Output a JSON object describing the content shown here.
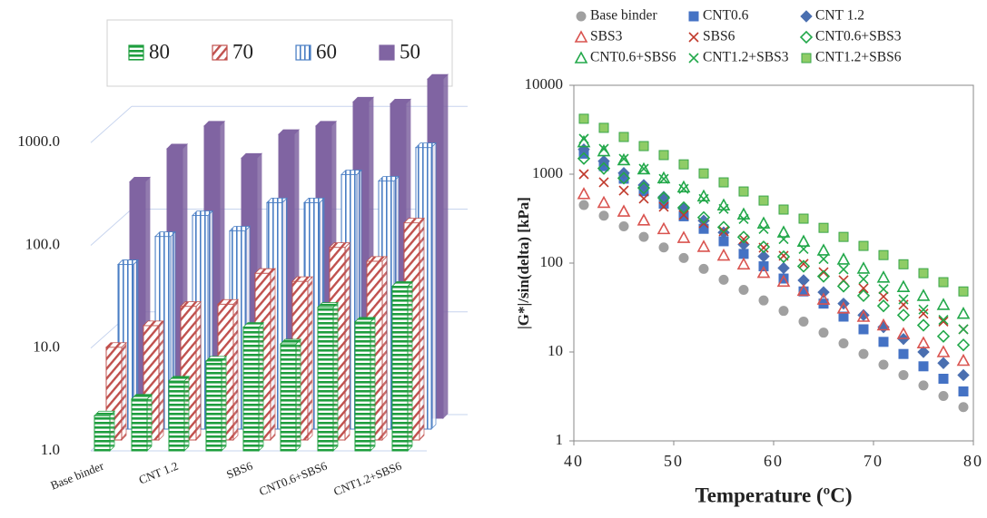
{
  "chart_data": [
    {
      "type": "bar3d",
      "categories": [
        "Base binder",
        null,
        "CNT 1.2",
        null,
        "SBS6",
        null,
        "CNT0.6+SBS6",
        null,
        "CNT1.2+SBS6"
      ],
      "series": [
        {
          "name": "80",
          "color": "#1e9e3e",
          "pattern": "horizontal",
          "values": [
            2.2,
            3.2,
            4.8,
            7.5,
            16,
            11,
            25,
            18,
            40
          ]
        },
        {
          "name": "70",
          "color": "#c0504d",
          "pattern": "diagonal",
          "values": [
            8,
            13,
            20,
            21,
            42,
            35,
            75,
            55,
            130
          ]
        },
        {
          "name": "60",
          "color": "#4a7ec4",
          "pattern": "vertical",
          "values": [
            40,
            75,
            120,
            85,
            160,
            160,
            300,
            260,
            550
          ]
        },
        {
          "name": "50",
          "color": "#8064a2",
          "pattern": "solid",
          "values": [
            200,
            420,
            700,
            340,
            580,
            700,
            1200,
            1150,
            2000
          ]
        }
      ],
      "ylim": [
        1,
        10000
      ],
      "yticks": [
        {
          "value": 1,
          "label": "1.0"
        },
        {
          "value": 10,
          "label": "10.0"
        },
        {
          "value": 100,
          "label": "100.0"
        },
        {
          "value": 1000,
          "label": "1000.0"
        }
      ],
      "log_scale": true,
      "legend": "top"
    },
    {
      "type": "scatter",
      "x": [
        41,
        43,
        45,
        47,
        49,
        51,
        53,
        55,
        57,
        59,
        61,
        63,
        65,
        67,
        69,
        71,
        73,
        75,
        77,
        79
      ],
      "series": [
        {
          "name": "Base binder",
          "color": "#a0a0a0",
          "marker": "circle",
          "filled": true,
          "values": [
            450,
            341,
            259,
            197,
            150,
            114,
            86,
            65,
            50,
            38,
            29,
            22,
            16.5,
            12.5,
            9.5,
            7.2,
            5.5,
            4.2,
            3.2,
            2.4
          ]
        },
        {
          "name": "CNT0.6",
          "color": "#4472c4",
          "marker": "square",
          "filled": true,
          "values": [
            1700,
            1230,
            890,
            643,
            465,
            336,
            243,
            176,
            127,
            92,
            67,
            48,
            35,
            25,
            18,
            13,
            9.5,
            6.9,
            5.0,
            3.6
          ]
        },
        {
          "name": "CNT 1.2",
          "color": "#4a6fb0",
          "marker": "diamond",
          "filled": true,
          "values": [
            1900,
            1400,
            1030,
            755,
            556,
            408,
            300,
            221,
            162,
            119,
            88,
            64,
            47,
            35,
            26,
            19,
            14,
            10,
            7.5,
            5.5
          ]
        },
        {
          "name": "SBS3",
          "color": "#d9534f",
          "marker": "triangle",
          "filled": false,
          "values": [
            600,
            478,
            381,
            303,
            242,
            193,
            153,
            122,
            97,
            78,
            62,
            49,
            39,
            31,
            25,
            20,
            16,
            12.6,
            10,
            8
          ]
        },
        {
          "name": "SBS6",
          "color": "#c0392b",
          "marker": "x",
          "filled": false,
          "values": [
            1000,
            810,
            655,
            531,
            430,
            348,
            281,
            228,
            185,
            149,
            121,
            98,
            79,
            64,
            52,
            42,
            34,
            27,
            22,
            18
          ]
        },
        {
          "name": "CNT0.6+SBS3",
          "color": "#22a84a",
          "marker": "diamond",
          "filled": false,
          "values": [
            1500,
            1160,
            902,
            700,
            542,
            421,
            326,
            253,
            196,
            152,
            118,
            92,
            71,
            55,
            43,
            33,
            26,
            20,
            15,
            12
          ]
        },
        {
          "name": "CNT0.6+SBS6",
          "color": "#22a84a",
          "marker": "triangle",
          "filled": false,
          "values": [
            2300,
            1820,
            1440,
            1140,
            903,
            714,
            565,
            448,
            354,
            280,
            222,
            175,
            139,
            110,
            87,
            69,
            54,
            43,
            34,
            27
          ]
        },
        {
          "name": "CNT1.2+SBS3",
          "color": "#22a84a",
          "marker": "x",
          "filled": false,
          "values": [
            2500,
            1930,
            1490,
            1150,
            885,
            683,
            526,
            406,
            313,
            242,
            186,
            144,
            111,
            85,
            66,
            51,
            39,
            30,
            23,
            18
          ]
        },
        {
          "name": "CNT1.2+SBS6",
          "color": "#8fcc66",
          "marker": "square",
          "filled": true,
          "values": [
            4200,
            3320,
            2620,
            2070,
            1640,
            1290,
            1020,
            809,
            639,
            505,
            400,
            316,
            249,
            197,
            156,
            123,
            97,
            77,
            61,
            48
          ]
        }
      ],
      "xlim": [
        40,
        80
      ],
      "xticks": [
        40,
        50,
        60,
        70,
        80
      ],
      "ylim": [
        1,
        10000
      ],
      "yticks": [
        1,
        10,
        100,
        1000,
        10000
      ],
      "log_scale": true,
      "xlabel": "Temperature (ºC)",
      "ylabel": "|G*|/sin(delta) [kPa]",
      "legend": "top"
    }
  ]
}
